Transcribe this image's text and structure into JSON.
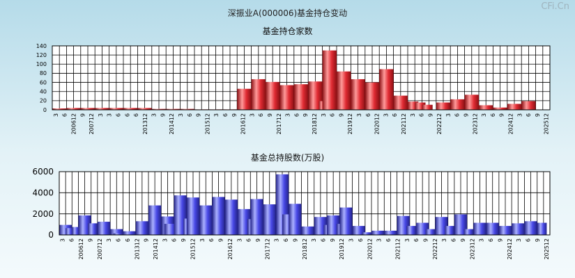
{
  "page_title": "深振业A(000006)基金持仓变动",
  "watermark": "CFi.Cn",
  "colors": {
    "bar_top": "#e02b33",
    "bar_bottom": "#4848e6",
    "grid": "#000000",
    "plot_bg": "#ffffff"
  },
  "chart_data": [
    {
      "type": "bar",
      "title": "基金持仓家数",
      "ylim": [
        0,
        140
      ],
      "yticks": [
        0,
        20,
        40,
        60,
        80,
        100,
        120,
        140
      ],
      "tick_labels": [
        "3",
        "6",
        "200612",
        "9",
        "200712",
        "3",
        "3",
        "6",
        "6",
        "6",
        "201312",
        "3",
        "9",
        "201412",
        "3",
        "6",
        "9",
        "201512",
        "3",
        "6",
        "9",
        "201612",
        "3",
        "6",
        "9",
        "201712",
        "3",
        "6",
        "9",
        "201812",
        "3",
        "6",
        "9",
        "201912",
        "3",
        "6",
        "202012",
        "3",
        "6",
        "202112",
        "3",
        "6",
        "9",
        "202212",
        "3",
        "6",
        "9",
        "202312",
        "3",
        "6",
        "9",
        "202412",
        "3",
        "6",
        "9",
        "202512"
      ],
      "values": [
        3,
        4,
        4,
        4,
        4,
        4,
        4,
        2,
        2,
        2,
        1,
        1,
        1,
        46,
        67,
        61,
        54,
        56,
        62,
        19,
        130,
        84,
        67,
        60,
        89,
        31,
        18,
        16,
        11,
        16,
        23,
        33,
        10,
        5,
        13,
        19
      ],
      "bar_slots": [
        [
          0,
          2
        ],
        [
          2,
          4
        ],
        [
          4,
          6
        ],
        [
          6,
          8
        ],
        [
          8,
          10
        ],
        [
          10,
          12
        ],
        [
          12,
          14
        ],
        [
          14,
          16
        ],
        [
          16,
          18
        ],
        [
          18,
          20
        ],
        [
          20,
          22
        ],
        [
          22,
          24
        ],
        [
          24,
          26
        ],
        [
          26,
          28
        ],
        [
          28,
          30
        ],
        [
          30,
          32
        ],
        [
          32,
          34
        ],
        [
          34,
          36
        ],
        [
          36,
          38
        ],
        [
          37.5,
          38.5
        ],
        [
          38,
          40
        ],
        [
          40,
          42
        ],
        [
          42,
          44
        ],
        [
          44,
          46
        ],
        [
          46,
          48
        ],
        [
          48,
          50
        ],
        [
          50,
          51.5
        ],
        [
          51,
          52.5
        ],
        [
          52,
          53.5
        ],
        [
          54,
          56
        ],
        [
          56,
          58
        ],
        [
          58,
          60
        ],
        [
          60,
          62
        ],
        [
          62,
          64
        ],
        [
          64,
          66
        ],
        [
          66,
          68
        ]
      ]
    },
    {
      "type": "bar",
      "title": "基金总持股数(万股)",
      "ylim": [
        0,
        6000
      ],
      "yticks": [
        0,
        2000,
        4000,
        6000
      ],
      "tick_labels": [
        "3",
        "6",
        "200612",
        "9",
        "200712",
        "3",
        "6",
        "6",
        "201312",
        "9",
        "201412",
        "3",
        "6",
        "9",
        "201512",
        "3",
        "6",
        "9",
        "201612",
        "3",
        "6",
        "9",
        "201712",
        "3",
        "6",
        "9",
        "201812",
        "3",
        "6",
        "9",
        "201912",
        "3",
        "6",
        "202012",
        "3",
        "6",
        "202112",
        "3",
        "6",
        "9",
        "202212",
        "3",
        "6",
        "9",
        "202312",
        "3",
        "6",
        "9",
        "202412",
        "3",
        "6",
        "9",
        "202512"
      ],
      "values": [
        950,
        650,
        750,
        1850,
        1100,
        1250,
        550,
        150,
        350,
        1300,
        2800,
        1750,
        1050,
        3750,
        1550,
        3550,
        2800,
        3600,
        3350,
        2450,
        1500,
        3400,
        2900,
        5750,
        1950,
        2950,
        800,
        1700,
        950,
        1850,
        1050,
        2600,
        850,
        250,
        400,
        400,
        1800,
        850,
        1150,
        550,
        1700,
        850,
        1950,
        550,
        1150,
        1150,
        850,
        1100,
        1300,
        1150
      ],
      "bar_slots": [
        [
          0,
          2
        ],
        [
          1,
          2.2
        ],
        [
          2,
          3.2
        ],
        [
          3,
          5
        ],
        [
          4.5,
          6
        ],
        [
          6,
          8
        ],
        [
          8,
          10
        ],
        [
          8.5,
          10
        ],
        [
          10,
          12
        ],
        [
          12,
          14
        ],
        [
          14,
          16
        ],
        [
          16,
          18
        ],
        [
          16.5,
          18.5
        ],
        [
          18,
          20
        ],
        [
          19.5,
          20.5
        ],
        [
          20,
          22
        ],
        [
          22,
          24
        ],
        [
          24,
          26
        ],
        [
          26,
          28
        ],
        [
          28,
          30
        ],
        [
          29.5,
          31
        ],
        [
          30,
          32
        ],
        [
          32,
          34
        ],
        [
          34,
          36
        ],
        [
          35,
          37
        ],
        [
          36,
          38
        ],
        [
          38,
          40
        ],
        [
          40,
          42
        ],
        [
          41.5,
          43
        ],
        [
          42,
          44
        ],
        [
          43.5,
          45
        ],
        [
          44,
          46
        ],
        [
          46,
          48
        ],
        [
          47.5,
          49
        ],
        [
          49,
          51
        ],
        [
          51,
          53
        ],
        [
          53,
          55
        ],
        [
          54.5,
          56
        ],
        [
          56,
          58
        ],
        [
          57.5,
          59
        ],
        [
          59,
          61
        ],
        [
          60.5,
          62
        ],
        [
          62,
          64
        ],
        [
          63.5,
          65
        ],
        [
          65,
          67
        ],
        [
          67,
          69
        ],
        [
          69,
          71
        ],
        [
          71,
          73
        ],
        [
          73,
          75
        ],
        [
          75,
          76.5
        ]
      ]
    }
  ]
}
